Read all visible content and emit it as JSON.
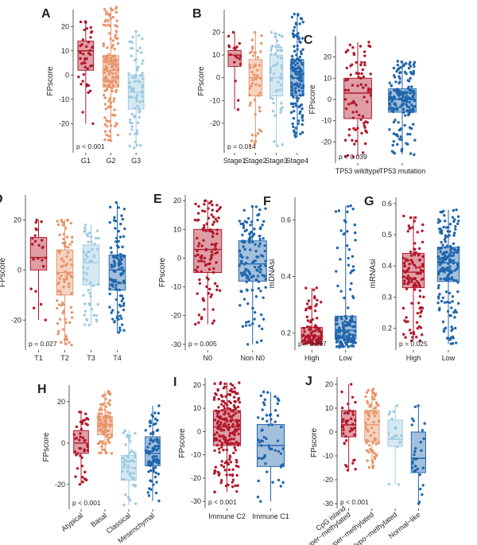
{
  "palette": {
    "darkred": "#b2182b",
    "orange": "#e8956b",
    "lightblue": "#9ecae1",
    "blue": "#2166ac"
  },
  "chart_data": [
    {
      "id": "A",
      "type": "box",
      "panel_label": "A",
      "ylabel": "FPscore",
      "pvalue": "p < 0.001",
      "ylim": [
        -32,
        27
      ],
      "yticks": [
        -20,
        -10,
        0,
        10,
        20
      ],
      "categories": [
        "G1",
        "G2",
        "G3"
      ],
      "boxes": [
        {
          "name": "G1",
          "color": "darkred",
          "min": -20,
          "q1": 2,
          "median": 10,
          "q3": 14,
          "max": 22,
          "n": 45
        },
        {
          "name": "G2",
          "color": "orange",
          "min": -27,
          "q1": -5,
          "median": 2,
          "q3": 8,
          "max": 28,
          "n": 160
        },
        {
          "name": "G3",
          "color": "lightblue",
          "min": -30,
          "q1": -14,
          "median": -7,
          "q3": 0,
          "max": 18,
          "n": 80
        }
      ]
    },
    {
      "id": "B",
      "type": "box",
      "panel_label": "B",
      "ylabel": "FPscore",
      "pvalue": "p = 0.014",
      "ylim": [
        -33,
        30
      ],
      "yticks": [
        -20,
        -10,
        0,
        10,
        20
      ],
      "categories": [
        "Stage1",
        "Stage2",
        "Stage3",
        "Stage4"
      ],
      "boxes": [
        {
          "name": "Stage1",
          "color": "darkred",
          "min": -14,
          "q1": 5,
          "median": 10,
          "q3": 12,
          "max": 20,
          "n": 18
        },
        {
          "name": "Stage2",
          "color": "orange",
          "min": -30,
          "q1": -8,
          "median": 0,
          "q3": 8,
          "max": 20,
          "n": 50
        },
        {
          "name": "Stage3",
          "color": "lightblue",
          "min": -30,
          "q1": -8,
          "median": 0,
          "q3": 10,
          "max": 20,
          "n": 55
        },
        {
          "name": "Stage4",
          "color": "blue",
          "min": -26,
          "q1": -8,
          "median": 0,
          "q3": 8,
          "max": 28,
          "n": 150
        }
      ]
    },
    {
      "id": "C",
      "type": "box",
      "panel_label": "C",
      "ylabel": "FPscore",
      "pvalue": "p = 0.039",
      "ylim": [
        -30,
        30
      ],
      "yticks": [
        -20,
        -10,
        0,
        10,
        20
      ],
      "categories": [
        "TP53 wildtype",
        "TP53 mutation"
      ],
      "boxes": [
        {
          "name": "TP53 wildtype",
          "color": "darkred",
          "min": -27,
          "q1": -9,
          "median": 3,
          "q3": 10,
          "max": 27,
          "n": 80
        },
        {
          "name": "TP53 mutation",
          "color": "blue",
          "min": -26,
          "q1": -6,
          "median": 0,
          "q3": 5,
          "max": 18,
          "n": 190
        }
      ]
    },
    {
      "id": "D",
      "type": "box",
      "panel_label": "D",
      "ylabel": "FPscore",
      "pvalue": "p = 0.027",
      "ylim": [
        -32,
        30
      ],
      "yticks": [
        -20,
        0,
        20
      ],
      "categories": [
        "T1",
        "T2",
        "T3",
        "T4"
      ],
      "boxes": [
        {
          "name": "T1",
          "color": "darkred",
          "min": -20,
          "q1": 0,
          "median": 5,
          "q3": 13,
          "max": 20,
          "n": 24
        },
        {
          "name": "T2",
          "color": "orange",
          "min": -30,
          "q1": -10,
          "median": -1,
          "q3": 8,
          "max": 20,
          "n": 90
        },
        {
          "name": "T3",
          "color": "lightblue",
          "min": -22,
          "q1": -6,
          "median": 3,
          "q3": 10,
          "max": 18,
          "n": 55
        },
        {
          "name": "T4",
          "color": "blue",
          "min": -25,
          "q1": -8,
          "median": 0,
          "q3": 6,
          "max": 27,
          "n": 110
        }
      ]
    },
    {
      "id": "E",
      "type": "box",
      "panel_label": "E",
      "ylabel": "FPscore",
      "pvalue": "p = 0.005",
      "ylim": [
        -32,
        22
      ],
      "yticks": [
        -30,
        -20,
        -10,
        0,
        10,
        20
      ],
      "categories": [
        "N0",
        "Non N0"
      ],
      "boxes": [
        {
          "name": "N0",
          "color": "darkred",
          "min": -23,
          "q1": -5,
          "median": 3,
          "q3": 10,
          "max": 20,
          "n": 110
        },
        {
          "name": "Non N0",
          "color": "blue",
          "min": -30,
          "q1": -8,
          "median": -2,
          "q3": 6,
          "max": 18,
          "n": 140
        }
      ]
    },
    {
      "id": "F",
      "type": "box",
      "panel_label": "F",
      "ylabel": "mDNAsi",
      "pvalue": "p = 0.037",
      "ylim": [
        0.14,
        0.68
      ],
      "yticks": [
        0.2,
        0.4,
        0.6
      ],
      "categories": [
        "High",
        "Low"
      ],
      "boxes": [
        {
          "name": "High",
          "color": "darkred",
          "min": 0.16,
          "q1": 0.175,
          "median": 0.19,
          "q3": 0.22,
          "max": 0.36,
          "n": 110
        },
        {
          "name": "Low",
          "color": "blue",
          "min": 0.15,
          "q1": 0.18,
          "median": 0.21,
          "q3": 0.26,
          "max": 0.65,
          "n": 160
        }
      ]
    },
    {
      "id": "G",
      "type": "box",
      "panel_label": "G",
      "ylabel": "mRNAsi",
      "pvalue": "p = 0.025",
      "ylim": [
        0.13,
        0.62
      ],
      "yticks": [
        0.2,
        0.3,
        0.4,
        0.5,
        0.6
      ],
      "categories": [
        "High",
        "Low"
      ],
      "boxes": [
        {
          "name": "High",
          "color": "darkred",
          "min": 0.16,
          "q1": 0.33,
          "median": 0.38,
          "q3": 0.44,
          "max": 0.56,
          "n": 120
        },
        {
          "name": "Low",
          "color": "blue",
          "min": 0.15,
          "q1": 0.35,
          "median": 0.41,
          "q3": 0.46,
          "max": 0.58,
          "n": 180
        }
      ]
    },
    {
      "id": "H",
      "type": "box",
      "panel_label": "H",
      "ylabel": "FPscore",
      "pvalue": "p < 0.001",
      "ylim": [
        -32,
        28
      ],
      "yticks": [
        -20,
        0,
        20
      ],
      "categories": [
        "Atypical",
        "Basal",
        "Classical",
        "Mesenchymal"
      ],
      "boxes": [
        {
          "name": "Atypical",
          "color": "darkred",
          "min": -20,
          "q1": -5,
          "median": 0,
          "q3": 6,
          "max": 15,
          "n": 45
        },
        {
          "name": "Basal",
          "color": "orange",
          "min": -5,
          "q1": 4,
          "median": 9,
          "q3": 13,
          "max": 25,
          "n": 100
        },
        {
          "name": "Classical",
          "color": "lightblue",
          "min": -30,
          "q1": -18,
          "median": -12,
          "q3": -6,
          "max": 6,
          "n": 50
        },
        {
          "name": "Mesenchymal",
          "color": "blue",
          "min": -28,
          "q1": -11,
          "median": -5,
          "q3": 3,
          "max": 18,
          "n": 90
        }
      ]
    },
    {
      "id": "I",
      "type": "box",
      "panel_label": "I",
      "ylabel": "FPscore",
      "pvalue": "p < 0.001",
      "ylim": [
        -33,
        23
      ],
      "yticks": [
        -30,
        -20,
        -10,
        0,
        10,
        20
      ],
      "categories": [
        "Immune C2",
        "Immune C1"
      ],
      "boxes": [
        {
          "name": "Immune C2",
          "color": "darkred",
          "min": -26,
          "q1": -6,
          "median": 2,
          "q3": 9,
          "max": 21,
          "n": 220
        },
        {
          "name": "Immune C1",
          "color": "blue",
          "min": -30,
          "q1": -15,
          "median": -6,
          "q3": 3,
          "max": 17,
          "n": 60
        }
      ]
    },
    {
      "id": "J",
      "type": "box",
      "panel_label": "J",
      "ylabel": "FPscore",
      "pvalue": "p < 0.001",
      "ylim": [
        -32,
        23
      ],
      "yticks": [
        -30,
        -20,
        -10,
        0,
        10,
        20
      ],
      "categories": [
        "CpG island\nhyper−methylated",
        "Hyper−methylated",
        "Hypo−methylated",
        "Normal−like"
      ],
      "boxes": [
        {
          "name": "CpG island hyper-methylated",
          "color": "darkred",
          "min": -16,
          "q1": -2,
          "median": 3,
          "q3": 9,
          "max": 20,
          "n": 40
        },
        {
          "name": "Hyper-methylated",
          "color": "orange",
          "min": -15,
          "q1": -4,
          "median": 3,
          "q3": 9,
          "max": 18,
          "n": 70
        },
        {
          "name": "Hypo-methylated",
          "color": "lightblue",
          "min": -22,
          "q1": -6,
          "median": -3,
          "q3": 5,
          "max": 11,
          "n": 18
        },
        {
          "name": "Normal-like",
          "color": "blue",
          "min": -30,
          "q1": -17,
          "median": -11,
          "q3": 0,
          "max": 11,
          "n": 30
        }
      ]
    }
  ]
}
